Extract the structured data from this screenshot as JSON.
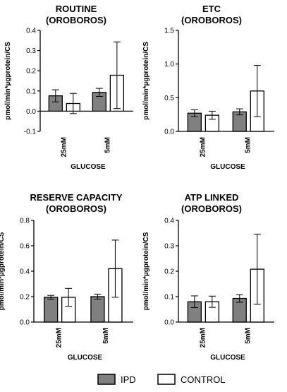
{
  "colors": {
    "IPD": "#808080",
    "CONTROL": "#ffffff",
    "stroke": "#000000"
  },
  "legend": {
    "items": [
      {
        "name": "IPD",
        "color": "#808080"
      },
      {
        "name": "CONTROL",
        "color": "#ffffff"
      }
    ]
  },
  "chart_data": [
    {
      "type": "bar",
      "title": [
        "ROUTINE",
        "(OROBOROS)"
      ],
      "ylabel": "pmol/min*µgprotein/CS",
      "xlabel": "GLUCOSE",
      "categories": [
        "25mM",
        "5mM"
      ],
      "ylim": [
        -0.1,
        0.4
      ],
      "yticks": [
        -0.1,
        0.0,
        0.1,
        0.2,
        0.3,
        0.4
      ],
      "ytick_labels": [
        "-0.1",
        "0.0",
        "0.1",
        "0.2",
        "0.3",
        "0.4"
      ],
      "series": [
        {
          "name": "IPD",
          "values": [
            0.076,
            0.093
          ],
          "errors": [
            0.03,
            0.02
          ]
        },
        {
          "name": "CONTROL",
          "values": [
            0.038,
            0.178
          ],
          "errors": [
            0.05,
            0.165
          ]
        }
      ]
    },
    {
      "type": "bar",
      "title": [
        "ETC",
        "(OROBOROS)"
      ],
      "ylabel": "pmol/min*µgprotein/CS",
      "xlabel": "GLUCOSE",
      "categories": [
        "25mM",
        "5mM"
      ],
      "ylim": [
        0,
        1.5
      ],
      "yticks": [
        0.0,
        0.5,
        1.0,
        1.5
      ],
      "ytick_labels": [
        "0.0",
        "0.5",
        "1.0",
        "1.5"
      ],
      "series": [
        {
          "name": "IPD",
          "values": [
            0.27,
            0.29
          ],
          "errors": [
            0.05,
            0.045
          ]
        },
        {
          "name": "CONTROL",
          "values": [
            0.24,
            0.6
          ],
          "errors": [
            0.06,
            0.38
          ]
        }
      ]
    },
    {
      "type": "bar",
      "title": [
        "RESERVE CAPACITY",
        "(OROBOROS)"
      ],
      "ylabel": "pmol/min*µgprotein/CS",
      "xlabel": "GLUCOSE",
      "categories": [
        "25mM",
        "5mM"
      ],
      "ylim": [
        0,
        0.8
      ],
      "yticks": [
        0.0,
        0.2,
        0.4,
        0.6,
        0.8
      ],
      "ytick_labels": [
        "0.0",
        "0.2",
        "0.4",
        "0.6",
        "0.8"
      ],
      "series": [
        {
          "name": "IPD",
          "values": [
            0.195,
            0.2
          ],
          "errors": [
            0.015,
            0.02
          ]
        },
        {
          "name": "CONTROL",
          "values": [
            0.195,
            0.42
          ],
          "errors": [
            0.07,
            0.225
          ]
        }
      ]
    },
    {
      "type": "bar",
      "title": [
        "ATP LINKED",
        "(OROBOROS)"
      ],
      "ylabel": "pmol/min*µgprotein/CS",
      "xlabel": "GLUCOSE",
      "categories": [
        "25mM",
        "5mM"
      ],
      "ylim": [
        0,
        0.4
      ],
      "yticks": [
        0.0,
        0.1,
        0.2,
        0.3,
        0.4
      ],
      "ytick_labels": [
        "0.0",
        "0.1",
        "0.2",
        "0.3",
        "0.4"
      ],
      "series": [
        {
          "name": "IPD",
          "values": [
            0.08,
            0.093
          ],
          "errors": [
            0.023,
            0.015
          ]
        },
        {
          "name": "CONTROL",
          "values": [
            0.08,
            0.208
          ],
          "errors": [
            0.022,
            0.138
          ]
        }
      ]
    }
  ]
}
